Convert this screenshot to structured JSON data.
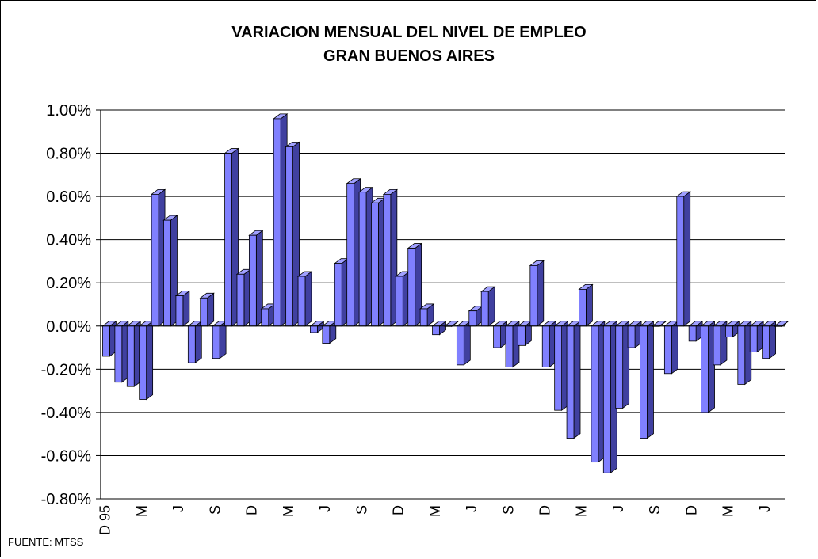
{
  "chart_data": {
    "type": "bar",
    "title": "VARIACION MENSUAL DEL NIVEL DE EMPLEO",
    "subtitle": "GRAN BUENOS AIRES",
    "ylim": [
      -0.8,
      1.0
    ],
    "y_ticks": [
      "1.00%",
      "0.80%",
      "0.60%",
      "0.40%",
      "0.20%",
      "0.00%",
      "-0.20%",
      "-0.40%",
      "-0.60%",
      "-0.80%"
    ],
    "grid": true,
    "x_tick_labels": [
      {
        "index": 0,
        "label": "D 95"
      },
      {
        "index": 3,
        "label": "M"
      },
      {
        "index": 6,
        "label": "J"
      },
      {
        "index": 9,
        "label": "S"
      },
      {
        "index": 12,
        "label": "D"
      },
      {
        "index": 15,
        "label": "M"
      },
      {
        "index": 18,
        "label": "J"
      },
      {
        "index": 21,
        "label": "S"
      },
      {
        "index": 24,
        "label": "D"
      },
      {
        "index": 27,
        "label": "M"
      },
      {
        "index": 30,
        "label": "J"
      },
      {
        "index": 33,
        "label": "S"
      },
      {
        "index": 36,
        "label": "D"
      },
      {
        "index": 39,
        "label": "M"
      },
      {
        "index": 42,
        "label": "J"
      },
      {
        "index": 45,
        "label": "S"
      },
      {
        "index": 48,
        "label": "D"
      },
      {
        "index": 51,
        "label": "M"
      },
      {
        "index": 54,
        "label": "J"
      }
    ],
    "values": [
      -0.14,
      -0.26,
      -0.28,
      -0.34,
      0.61,
      0.49,
      0.14,
      -0.17,
      0.13,
      -0.15,
      0.8,
      0.24,
      0.42,
      0.08,
      0.96,
      0.83,
      0.23,
      -0.03,
      -0.08,
      0.29,
      0.66,
      0.62,
      0.57,
      0.61,
      0.23,
      0.36,
      0.08,
      -0.04,
      0.0,
      -0.18,
      0.07,
      0.16,
      -0.1,
      -0.19,
      -0.09,
      0.28,
      -0.19,
      -0.39,
      -0.52,
      0.17,
      -0.63,
      -0.68,
      -0.38,
      -0.1,
      -0.52,
      0.0,
      -0.22,
      0.6,
      -0.07,
      -0.4,
      -0.18,
      -0.05,
      -0.27,
      -0.12,
      -0.15,
      0.0
    ],
    "bar_color": "#8080ff"
  },
  "source": "FUENTE: MTSS"
}
